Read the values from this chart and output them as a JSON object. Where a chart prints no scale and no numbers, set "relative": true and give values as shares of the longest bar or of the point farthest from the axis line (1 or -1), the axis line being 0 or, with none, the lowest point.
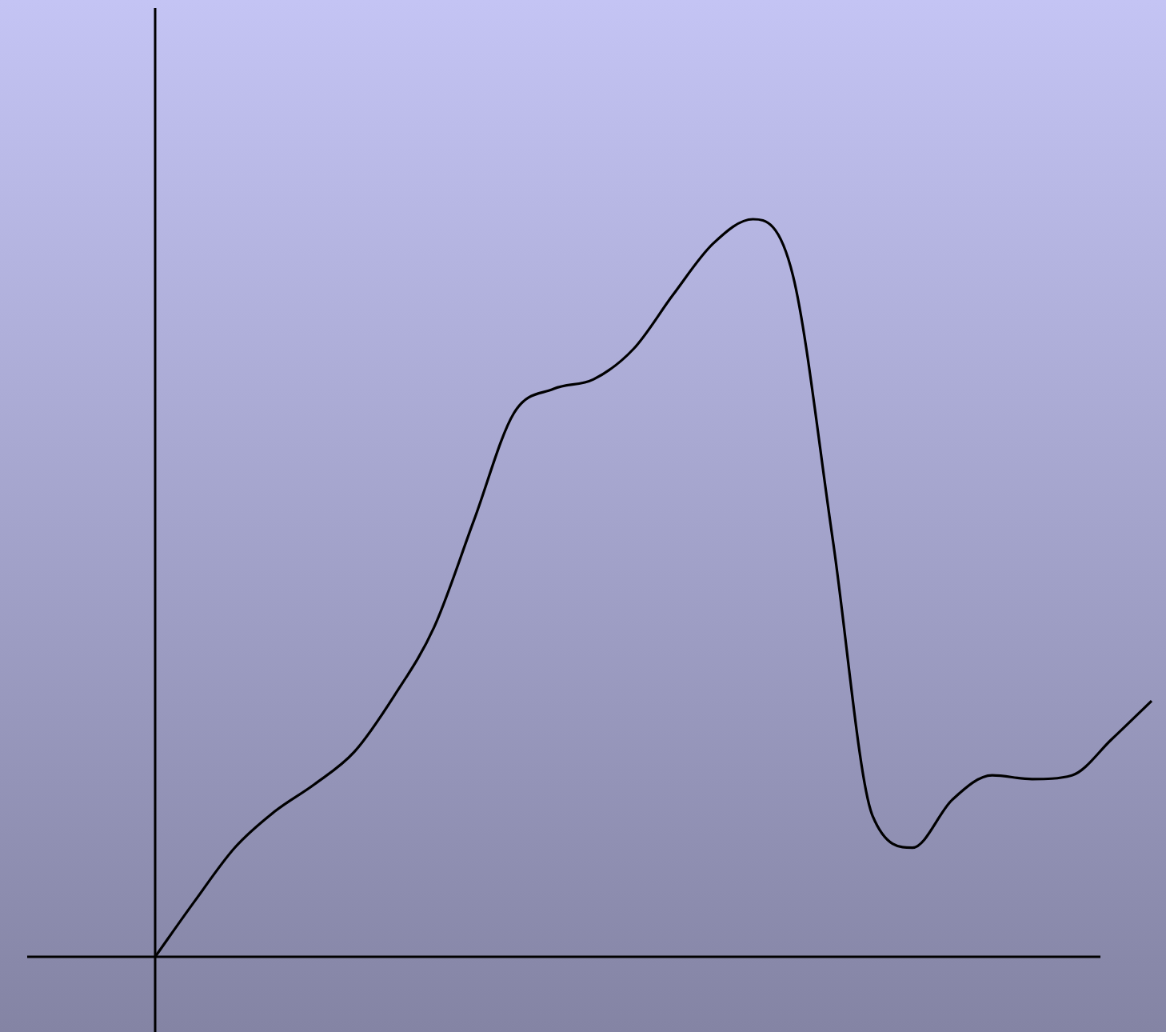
{
  "chart_data": {
    "type": "line",
    "relative": true,
    "categories": [
      null,
      null,
      null,
      null,
      null,
      null,
      null,
      null,
      null,
      null,
      null,
      null,
      null,
      null,
      null,
      null,
      null,
      null,
      null,
      null,
      null,
      null,
      null,
      null,
      null,
      null
    ],
    "series": [
      {
        "color": "#000000",
        "values": [
          0,
          0.076,
          0.148,
          0.197,
          0.234,
          0.278,
          0.354,
          0.447,
          0.592,
          0.737,
          0.77,
          0.783,
          0.824,
          0.898,
          0.967,
          1,
          0.924,
          0.566,
          0.191,
          0.148,
          0.213,
          0.246,
          0.241,
          0.246,
          0.295,
          0.347
        ]
      }
    ],
    "legend": false,
    "marker": "none",
    "line_style": "solid"
  }
}
